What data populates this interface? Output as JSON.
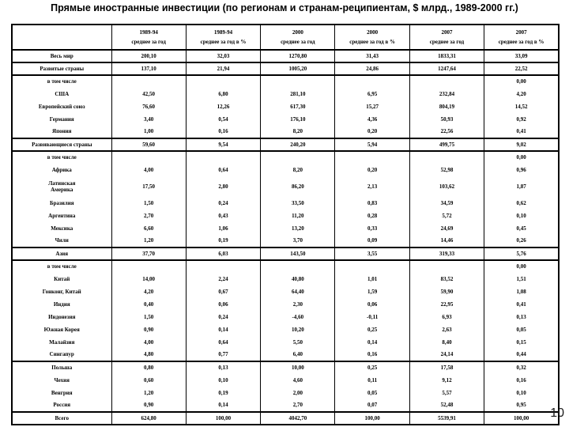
{
  "slide": {
    "title": "Прямые иностранные инвестиции (по регионам и  странам-реципиентам, $ млрд., 1989-2000 гг.)",
    "page_number": "10"
  },
  "table": {
    "columns": [
      {
        "period": "1989-94",
        "measure": "среднее за год"
      },
      {
        "period": "1989-94",
        "measure": "среднее за год в %"
      },
      {
        "period": "2000",
        "measure": "среднее за год"
      },
      {
        "period": "2000",
        "measure": "среднее за год в %"
      },
      {
        "period": "2007",
        "measure": "среднее за год"
      },
      {
        "period": "2007",
        "measure": "среднее за год в %"
      }
    ],
    "rows": [
      {
        "label": "Весь мир",
        "values": [
          "200,10",
          "32,03",
          "1270,80",
          "31,43",
          "1833,31",
          "33,09"
        ]
      },
      {
        "label": "Развитые страны",
        "values": [
          "137,10",
          "21,94",
          "1005,20",
          "24,86",
          "1247,64",
          "22,52"
        ],
        "sep_above": true
      },
      {
        "label": "в том числе",
        "values": [
          "",
          "",
          "",
          "",
          "",
          "0,00"
        ],
        "sep_above": true
      },
      {
        "label": "США",
        "values": [
          "42,50",
          "6,80",
          "281,10",
          "6,95",
          "232,84",
          "4,20"
        ]
      },
      {
        "label": "Европейский союз",
        "values": [
          "76,60",
          "12,26",
          "617,30",
          "15,27",
          "804,19",
          "14,52"
        ]
      },
      {
        "label": "Германия",
        "values": [
          "3,40",
          "0,54",
          "176,10",
          "4,36",
          "50,93",
          "0,92"
        ]
      },
      {
        "label": "Япония",
        "values": [
          "1,00",
          "0,16",
          "8,20",
          "0,20",
          "22,56",
          "0,41"
        ]
      },
      {
        "label": "Развивающиеся страны",
        "values": [
          "59,60",
          "9,54",
          "240,20",
          "5,94",
          "499,75",
          "9,02"
        ],
        "sep_above": true
      },
      {
        "label": "в том числе",
        "values": [
          "",
          "",
          "",
          "",
          "",
          "0,00"
        ],
        "sep_above": true
      },
      {
        "label": "Африка",
        "values": [
          "4,00",
          "0,64",
          "8,20",
          "0,20",
          "52,98",
          "0,96"
        ]
      },
      {
        "label": "Латинская Америка",
        "values": [
          "17,50",
          "2,80",
          "86,20",
          "2,13",
          "103,62",
          "1,87"
        ],
        "wrap": true
      },
      {
        "label": "Бразилия",
        "values": [
          "1,50",
          "0,24",
          "33,50",
          "0,83",
          "34,59",
          "0,62"
        ]
      },
      {
        "label": "Аргентина",
        "values": [
          "2,70",
          "0,43",
          "11,20",
          "0,28",
          "5,72",
          "0,10"
        ]
      },
      {
        "label": "Мексика",
        "values": [
          "6,60",
          "1,06",
          "13,20",
          "0,33",
          "24,69",
          "0,45"
        ]
      },
      {
        "label": "Чили",
        "values": [
          "1,20",
          "0,19",
          "3,70",
          "0,09",
          "14,46",
          "0,26"
        ]
      },
      {
        "label": "Азия",
        "values": [
          "37,70",
          "6,03",
          "143,50",
          "3,55",
          "319,33",
          "5,76"
        ],
        "sep_above": true
      },
      {
        "label": "в том числе",
        "values": [
          "",
          "",
          "",
          "",
          "",
          "0,00"
        ],
        "sep_above": true
      },
      {
        "label": "Китай",
        "values": [
          "14,00",
          "2,24",
          "40,80",
          "1,01",
          "83,52",
          "1,51"
        ]
      },
      {
        "label": "Гонконг, Китай",
        "values": [
          "4,20",
          "0,67",
          "64,40",
          "1,59",
          "59,90",
          "1,08"
        ]
      },
      {
        "label": "Индия",
        "values": [
          "0,40",
          "0,06",
          "2,30",
          "0,06",
          "22,95",
          "0,41"
        ]
      },
      {
        "label": "Индонезия",
        "values": [
          "1,50",
          "0,24",
          "-4,60",
          "-0,11",
          "6,93",
          "0,13"
        ]
      },
      {
        "label": "Южная Корея",
        "values": [
          "0,90",
          "0,14",
          "10,20",
          "0,25",
          "2,63",
          "0,05"
        ]
      },
      {
        "label": "Малайзия",
        "values": [
          "4,00",
          "0,64",
          "5,50",
          "0,14",
          "8,40",
          "0,15"
        ]
      },
      {
        "label": "Сингапур",
        "values": [
          "4,80",
          "0,77",
          "6,40",
          "0,16",
          "24,14",
          "0,44"
        ]
      },
      {
        "label": "Польша",
        "values": [
          "0,80",
          "0,13",
          "10,00",
          "0,25",
          "17,58",
          "0,32"
        ],
        "sep_above": true
      },
      {
        "label": "Чехия",
        "values": [
          "0,60",
          "0,10",
          "4,60",
          "0,11",
          "9,12",
          "0,16"
        ]
      },
      {
        "label": "Венгрия",
        "values": [
          "1,20",
          "0,19",
          "2,00",
          "0,05",
          "5,57",
          "0,10"
        ]
      },
      {
        "label": "Россия",
        "values": [
          "0,90",
          "0,14",
          "2,70",
          "0,07",
          "52,48",
          "0,95"
        ]
      },
      {
        "label": "Всего",
        "values": [
          "624,80",
          "100,00",
          "4042,70",
          "100,00",
          "5539,91",
          "100,00"
        ],
        "sep_above": true
      }
    ]
  }
}
